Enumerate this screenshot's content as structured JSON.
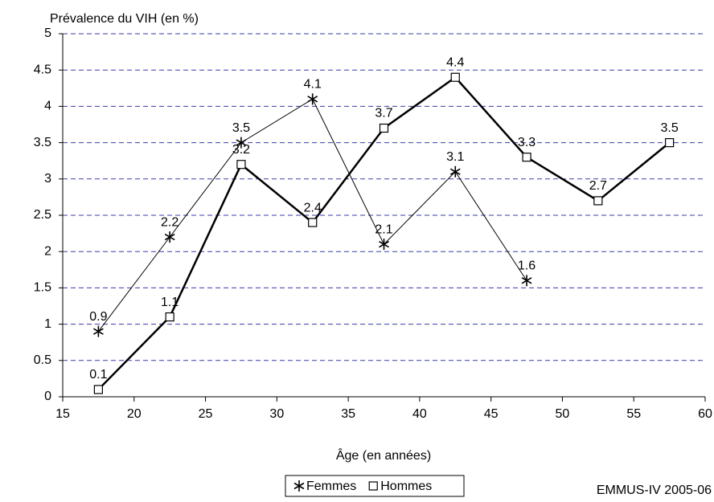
{
  "chart_data": {
    "type": "line",
    "title": "Prévalence du VIH (en %)",
    "x_label": "Âge (en années)",
    "source": "EMMUS-IV 2005-06",
    "series": [
      {
        "name": "Femmes",
        "color": "#000000",
        "marker": "star",
        "x": [
          17.5,
          22.5,
          27.5,
          32.5,
          37.5,
          42.5,
          47.5
        ],
        "values": [
          0.9,
          2.2,
          3.5,
          4.1,
          2.1,
          3.1,
          1.6
        ]
      },
      {
        "name": "Hommes",
        "color": "#000000",
        "marker": "square",
        "x": [
          17.5,
          22.5,
          27.5,
          32.5,
          37.5,
          42.5,
          47.5,
          52.5,
          57.5
        ],
        "values": [
          0.1,
          1.1,
          3.2,
          2.4,
          3.7,
          4.4,
          3.3,
          2.7,
          3.5
        ]
      }
    ],
    "xlim": [
      15,
      60
    ],
    "xticks": [
      15,
      20,
      25,
      30,
      35,
      40,
      45,
      50,
      55,
      60
    ],
    "ylim": [
      0,
      5
    ],
    "yticks": [
      0,
      0.5,
      1,
      1.5,
      2,
      2.5,
      3,
      3.5,
      4,
      4.5,
      5
    ],
    "grid": true,
    "grid_color": "#3a3aa8",
    "legend": "bottom"
  }
}
